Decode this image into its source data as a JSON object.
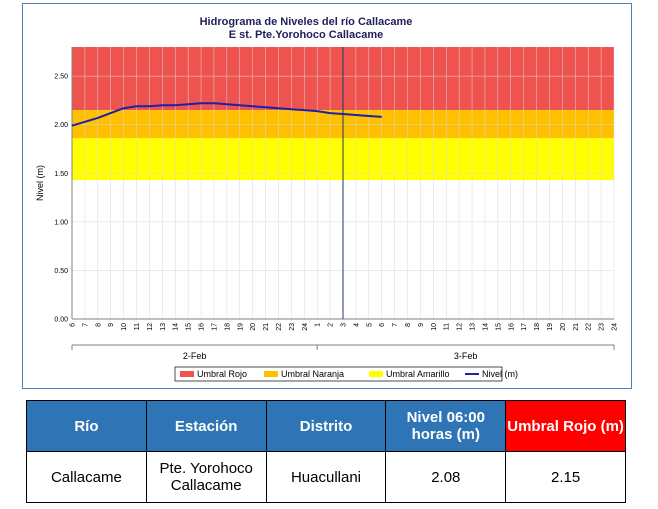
{
  "chart_data": {
    "type": "line",
    "title": "Hidrograma de Niveles del río Callacame",
    "subtitle": "E st. Pte.Yorohoco Callacame",
    "ylabel": "Nivel (m)",
    "xlabel": "",
    "ylim": [
      0,
      2.8
    ],
    "yticks": [
      "0.00",
      "0.50",
      "1.00",
      "1.50",
      "2.00",
      "2.50"
    ],
    "ytick_values": [
      0,
      0.5,
      1.0,
      1.5,
      2.0,
      2.5
    ],
    "x_hour_labels": [
      "6",
      "7",
      "8",
      "9",
      "10",
      "11",
      "12",
      "13",
      "14",
      "15",
      "16",
      "17",
      "18",
      "19",
      "20",
      "21",
      "22",
      "23",
      "24",
      "1",
      "2",
      "3",
      "4",
      "5",
      "6",
      "7",
      "8",
      "9",
      "10",
      "11",
      "12",
      "13",
      "14",
      "15",
      "16",
      "17",
      "18",
      "19",
      "20",
      "21",
      "22",
      "23",
      "24"
    ],
    "day_labels": [
      "2-Feb",
      "3-Feb"
    ],
    "grid": true,
    "legend_position": "bottom",
    "thresholds": [
      {
        "name": "Umbral Rojo",
        "from": 2.15,
        "to": 2.8,
        "color": "#ef5350"
      },
      {
        "name": "Umbral Naranja",
        "from": 1.86,
        "to": 2.15,
        "color": "#ffc000"
      },
      {
        "name": "Umbral Amarillo",
        "from": 1.43,
        "to": 1.86,
        "color": "#ffff00"
      }
    ],
    "series": [
      {
        "name": "Nivel (m)",
        "color": "#1f1fa8",
        "x": [
          0,
          1,
          2,
          3,
          4,
          5,
          6,
          7,
          8,
          9,
          10,
          11,
          12,
          13,
          14,
          15,
          16,
          17,
          18,
          19,
          20,
          21,
          22,
          23,
          24
        ],
        "values": [
          1.99,
          2.03,
          2.07,
          2.12,
          2.17,
          2.19,
          2.19,
          2.2,
          2.2,
          2.21,
          2.22,
          2.22,
          2.21,
          2.2,
          2.19,
          2.18,
          2.17,
          2.16,
          2.15,
          2.14,
          2.12,
          2.11,
          2.1,
          2.09,
          2.08
        ]
      }
    ],
    "current_time_index": 21
  },
  "table": {
    "headers": [
      "Río",
      "Estación",
      "Distrito",
      "Nivel 06:00 horas (m)",
      "Umbral Rojo (m)"
    ],
    "row": [
      "Callacame",
      "Pte. Yorohoco Callacame",
      "Huacullani",
      "2.08",
      "2.15"
    ]
  }
}
